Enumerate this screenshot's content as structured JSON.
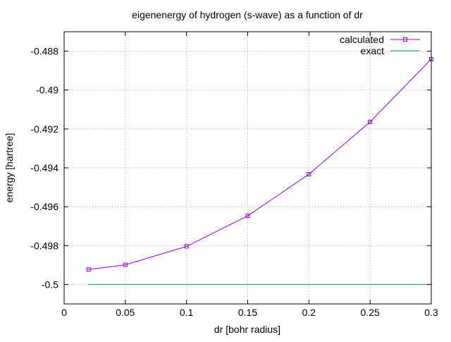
{
  "chart_data": {
    "type": "line",
    "title": "eigenenergy of hydrogen (s-wave) as a function of dr",
    "xlabel": "dr [bohr radius]",
    "ylabel": "energy [hartree]",
    "xlim": [
      0,
      0.3
    ],
    "ylim": [
      -0.501,
      -0.487
    ],
    "x_ticks": [
      {
        "value": 0,
        "label": "0"
      },
      {
        "value": 0.05,
        "label": "0.05"
      },
      {
        "value": 0.1,
        "label": "0.1"
      },
      {
        "value": 0.15,
        "label": "0.15"
      },
      {
        "value": 0.2,
        "label": "0.2"
      },
      {
        "value": 0.25,
        "label": "0.25"
      },
      {
        "value": 0.3,
        "label": "0.3"
      }
    ],
    "y_ticks": [
      {
        "value": -0.488,
        "label": "-0.488"
      },
      {
        "value": -0.49,
        "label": "-0.49"
      },
      {
        "value": -0.492,
        "label": "-0.492"
      },
      {
        "value": -0.494,
        "label": "-0.494"
      },
      {
        "value": -0.496,
        "label": "-0.496"
      },
      {
        "value": -0.498,
        "label": "-0.498"
      },
      {
        "value": -0.5,
        "label": "-0.5"
      }
    ],
    "grid": true,
    "legend_position": "top-right",
    "series": [
      {
        "name": "calculated",
        "color": "#9400d3",
        "marker": "square",
        "x": [
          0.02,
          0.05,
          0.1,
          0.15,
          0.2,
          0.25,
          0.3
        ],
        "y": [
          -0.49923,
          -0.49899,
          -0.49804,
          -0.49647,
          -0.49433,
          -0.49164,
          -0.48841
        ]
      },
      {
        "name": "exact",
        "color": "#009e73",
        "marker": "none",
        "x": [
          0.02,
          0.3
        ],
        "y": [
          -0.5,
          -0.5
        ]
      }
    ]
  }
}
